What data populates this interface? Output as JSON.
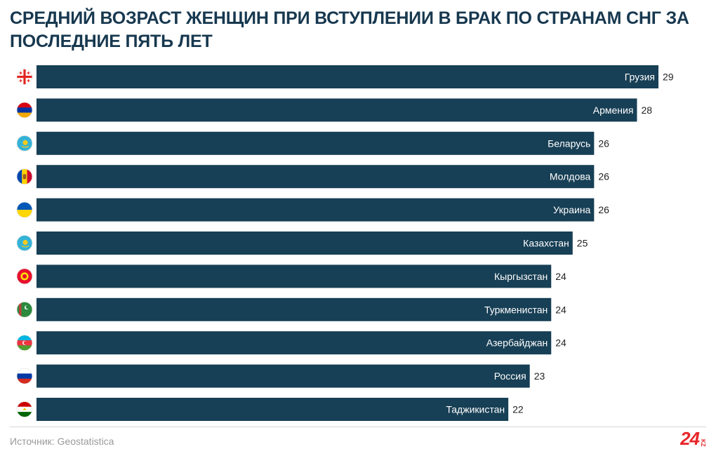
{
  "title": "Средний возраст женщин при вступлении в брак по странам СНГ за последние пять лет",
  "source": "Источник: Geostatistica",
  "logo": {
    "number": "24",
    "suffix": "KZ"
  },
  "colors": {
    "bar": "#173f55",
    "bar_label": "#ffffff",
    "value": "#222222",
    "title": "#17384f"
  },
  "chart_data": {
    "type": "bar",
    "orientation": "horizontal",
    "title": "Средний возраст женщин при вступлении в брак по странам СНГ за последние пять лет",
    "categories": [
      "Грузия",
      "Армения",
      "Беларусь",
      "Молдова",
      "Украина",
      "Казахстан",
      "Кыргызстан",
      "Туркменистан",
      "Азербайджан",
      "Россия",
      "Таджикистан"
    ],
    "values": [
      29,
      28,
      26,
      26,
      26,
      25,
      24,
      24,
      24,
      23,
      22
    ],
    "flags": [
      "georgia-flag-icon",
      "armenia-flag-icon",
      "kazakhstan-flag-icon",
      "moldova-flag-icon",
      "ukraine-flag-icon",
      "kazakhstan-flag-icon",
      "kyrgyzstan-flag-icon",
      "turkmenistan-flag-icon",
      "azerbaijan-flag-icon",
      "russia-flag-icon",
      "tajikistan-flag-icon"
    ],
    "xlim": [
      0,
      29
    ],
    "xlabel": "",
    "ylabel": "",
    "grid": false,
    "legend": "none"
  }
}
